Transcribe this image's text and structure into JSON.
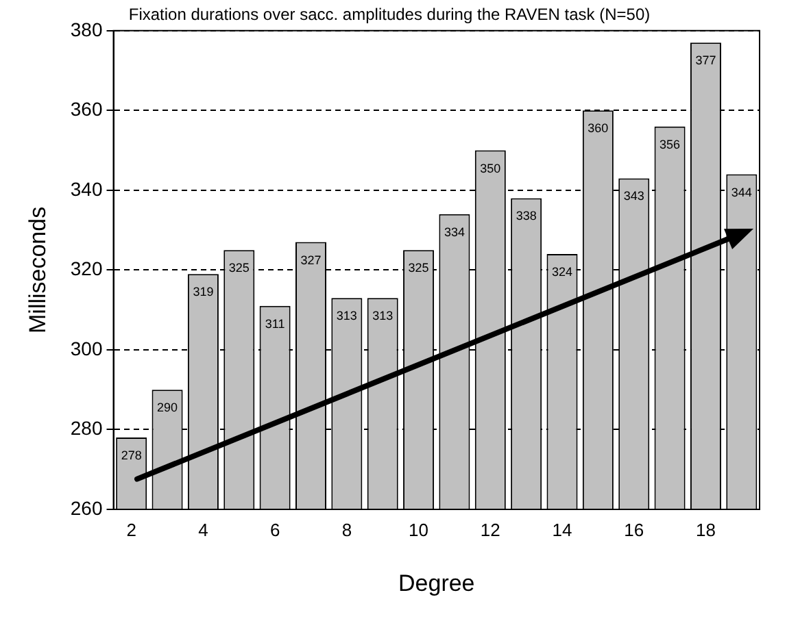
{
  "chart_data": {
    "type": "bar",
    "title": "Fixation durations over sacc. amplitudes during the RAVEN task (N=50)",
    "xlabel": "Degree",
    "ylabel": "Milliseconds",
    "categories": [
      "2",
      null,
      "4",
      null,
      "6",
      null,
      "8",
      null,
      "10",
      null,
      "12",
      null,
      "14",
      null,
      "16",
      null,
      "18",
      null
    ],
    "values": [
      278,
      290,
      319,
      325,
      311,
      327,
      313,
      313,
      325,
      334,
      350,
      338,
      324,
      360,
      343,
      356,
      377,
      344
    ],
    "color": "#c0c0c0",
    "ylim": [
      260,
      380
    ],
    "yticks": [
      260,
      280,
      300,
      320,
      340,
      360,
      380
    ],
    "grid": "y",
    "data_labels": true
  }
}
